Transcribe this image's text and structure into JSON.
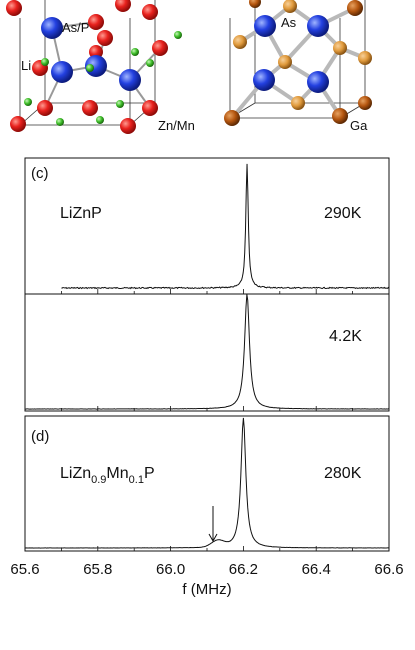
{
  "structures": {
    "left": {
      "label_as_p": "As/P",
      "label_li": "Li",
      "label_zn_mn": "Zn/Mn"
    },
    "right": {
      "label_as": "As",
      "label_ga": "Ga"
    },
    "colors": {
      "red": "#e8211d",
      "blue": "#2340e0",
      "green": "#3fbf2a",
      "brown": "#b5560f",
      "orange": "#e09a3c",
      "bond": "#b9b9b9"
    }
  },
  "panel_c": {
    "tag": "(c)",
    "compound": "LiZnP",
    "temp_upper": "290K",
    "temp_lower": "4.2K"
  },
  "panel_d": {
    "tag": "(d)",
    "compound_parts": [
      "LiZn",
      "0.9",
      "Mn",
      "0.1",
      "P"
    ],
    "temp": "280K"
  },
  "x_axis": {
    "ticks": [
      "65.6",
      "65.8",
      "66.0",
      "66.2",
      "66.4",
      "66.6"
    ],
    "label": "f (MHz)"
  },
  "chart_data": {
    "type": "line",
    "xlim": [
      65.6,
      66.6
    ],
    "xlabel": "f (MHz)",
    "x_ticks": [
      65.6,
      65.8,
      66.0,
      66.2,
      66.4,
      66.6
    ],
    "series": [
      {
        "name": "290K",
        "peak_center": 66.21,
        "peak_halfwidth": 0.004,
        "peak_height": 1.0,
        "x_range": [
          65.7,
          66.6
        ]
      },
      {
        "name": "4.2K",
        "peak_center": 66.21,
        "peak_halfwidth": 0.008,
        "peak_height": 1.0,
        "x_range": [
          65.6,
          66.6
        ]
      },
      {
        "name": "280K",
        "peak_center": 66.2,
        "peak_halfwidth": 0.008,
        "peak_height": 1.0,
        "satellite_center": 66.13,
        "satellite_height": 0.05,
        "x_range": [
          65.6,
          66.6
        ]
      }
    ]
  }
}
